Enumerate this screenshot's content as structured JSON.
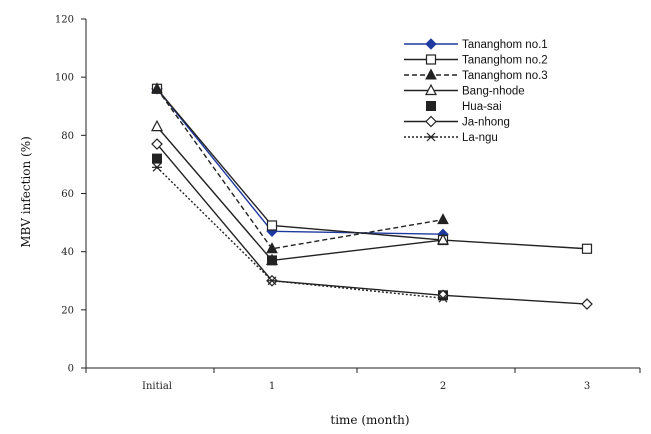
{
  "chart_data": {
    "type": "line",
    "title": "",
    "xlabel": "time (month)",
    "ylabel": "MBV infection (%)",
    "categories": [
      "Initial",
      "1",
      "2",
      "3"
    ],
    "ylim": [
      0,
      120
    ],
    "yticks": [
      "0",
      "20",
      "40",
      "60",
      "80",
      "100",
      "120"
    ],
    "grid": false,
    "legend_position": "top-right",
    "series": [
      {
        "name": "Tananghom no.1",
        "values": [
          96,
          47,
          46,
          null
        ],
        "color": "#1f3a9e",
        "line": "solid",
        "marker": "filled-diamond"
      },
      {
        "name": "Tananghom no.2",
        "values": [
          96,
          49,
          44,
          41
        ],
        "color": "#222222",
        "line": "solid",
        "marker": "open-square"
      },
      {
        "name": "Tananghom no.3",
        "values": [
          96,
          41,
          51,
          null
        ],
        "color": "#222222",
        "line": "dashed",
        "marker": "filled-triangle"
      },
      {
        "name": "Bang-nhode",
        "values": [
          83,
          37,
          44,
          null
        ],
        "color": "#222222",
        "line": "solid",
        "marker": "open-triangle"
      },
      {
        "name": "Hua-sai",
        "values": [
          72,
          37,
          25,
          null
        ],
        "color": "#222222",
        "line": "none",
        "marker": "filled-square"
      },
      {
        "name": "Ja-nhong",
        "values": [
          77,
          30,
          25,
          22
        ],
        "color": "#222222",
        "line": "solid",
        "marker": "open-diamond"
      },
      {
        "name": "La-ngu",
        "values": [
          69,
          30,
          24,
          null
        ],
        "color": "#222222",
        "line": "dotted",
        "marker": "star"
      }
    ]
  }
}
